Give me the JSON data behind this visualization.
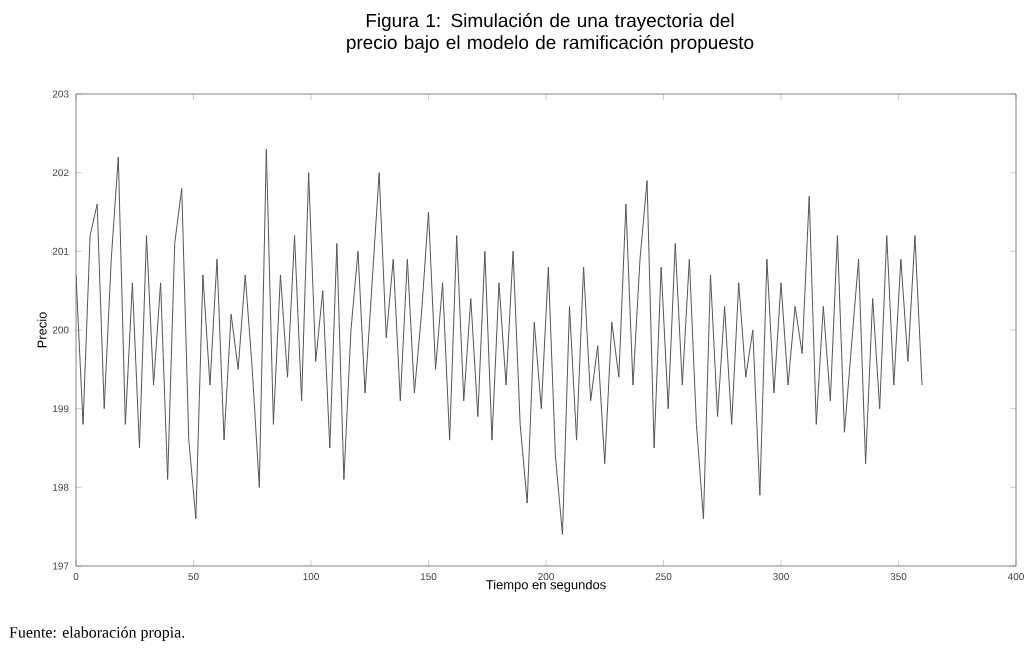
{
  "chart_data": {
    "type": "line",
    "title": "Figura 1: Simulación de una trayectoria del precio bajo el modelo de ramificación propuesto",
    "xlabel": "Tiempo en segundos",
    "ylabel": "Precio",
    "annotations": [
      "Fuente: elaboración propia."
    ],
    "xlim": [
      0,
      400
    ],
    "xticks": [
      0,
      50,
      100,
      150,
      200,
      250,
      300,
      350,
      400
    ],
    "ylim": [
      197,
      203
    ],
    "yticks": [
      197,
      198,
      199,
      200,
      201,
      202,
      203
    ],
    "marker": "none",
    "line_style": "solid",
    "series": [
      {
        "color": "#555555",
        "x": [
          0,
          3,
          6,
          9,
          12,
          15,
          18,
          21,
          24,
          27,
          30,
          33,
          36,
          39,
          42,
          45,
          48,
          51,
          54,
          57,
          60,
          63,
          66,
          69,
          72,
          75,
          78,
          81,
          84,
          87,
          90,
          93,
          96,
          99,
          102,
          105,
          108,
          111,
          114,
          117,
          120,
          123,
          126,
          129,
          132,
          135,
          138,
          141,
          144,
          147,
          150,
          153,
          156,
          159,
          162,
          165,
          168,
          171,
          174,
          177,
          180,
          183,
          186,
          189,
          192,
          195,
          198,
          201,
          204,
          207,
          210,
          213,
          216,
          219,
          222,
          225,
          228,
          231,
          234,
          237,
          240,
          243,
          246,
          249,
          252,
          255,
          258,
          261,
          264,
          267,
          270,
          273,
          276,
          279,
          282,
          285,
          288,
          291,
          294,
          297,
          300,
          303,
          306,
          309,
          312,
          315,
          318,
          321,
          324,
          327,
          330,
          333,
          336,
          339,
          342,
          345,
          348,
          351,
          354,
          357,
          360
        ],
        "values": [
          200.7,
          198.8,
          201.2,
          201.6,
          199.0,
          200.9,
          202.2,
          198.8,
          200.6,
          198.5,
          201.2,
          199.3,
          200.6,
          198.1,
          201.1,
          201.8,
          198.6,
          197.6,
          200.7,
          199.3,
          200.9,
          198.6,
          200.2,
          199.5,
          200.7,
          199.5,
          198.0,
          202.3,
          198.8,
          200.7,
          199.4,
          201.2,
          199.1,
          202.0,
          199.6,
          200.5,
          198.5,
          201.1,
          198.1,
          200.0,
          201.0,
          199.2,
          200.6,
          202.0,
          199.9,
          200.9,
          199.1,
          200.9,
          199.2,
          200.2,
          201.5,
          199.5,
          200.6,
          198.6,
          201.2,
          199.1,
          200.4,
          198.9,
          201.0,
          198.6,
          200.6,
          199.3,
          201.0,
          198.8,
          197.8,
          200.1,
          199.0,
          200.8,
          198.4,
          197.4,
          200.3,
          198.6,
          200.8,
          199.1,
          199.8,
          198.3,
          200.1,
          199.4,
          201.6,
          199.3,
          200.9,
          201.9,
          198.5,
          200.8,
          199.0,
          201.1,
          199.3,
          200.9,
          198.8,
          197.6,
          200.7,
          198.9,
          200.3,
          198.8,
          200.6,
          199.4,
          200.0,
          197.9,
          200.9,
          199.2,
          200.6,
          199.3,
          200.3,
          199.7,
          201.7,
          198.8,
          200.3,
          199.1,
          201.2,
          198.7,
          199.8,
          200.9,
          198.3,
          200.4,
          199.0,
          201.2,
          199.3,
          200.9,
          199.6,
          201.2,
          199.3
        ]
      }
    ]
  }
}
